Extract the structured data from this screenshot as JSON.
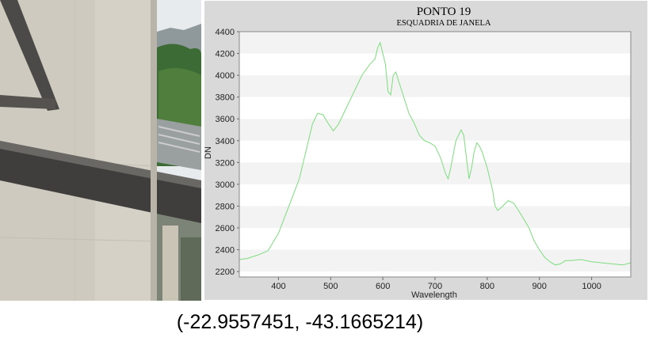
{
  "photo": {
    "description_icon": "building-window-photo"
  },
  "caption": {
    "coordinates": "(-22.9557451, -43.1665214)"
  },
  "chart_data": {
    "type": "line",
    "title": "PONTO 19",
    "subtitle": "ESQUADRIA DE JANELA",
    "xlabel": "Wavelength",
    "ylabel": "DN",
    "xlim": [
      325,
      1075
    ],
    "ylim": [
      2150,
      4400
    ],
    "xticks": [
      400,
      500,
      600,
      700,
      800,
      900,
      1000
    ],
    "yticks": [
      2200,
      2400,
      2600,
      2800,
      3000,
      3200,
      3400,
      3600,
      3800,
      4000,
      4200,
      4400
    ],
    "line_color": "#7ddc7d",
    "grid": "horizontal bands",
    "series": [
      {
        "x": [
          325,
          340,
          360,
          380,
          400,
          420,
          440,
          455,
          465,
          475,
          485,
          495,
          505,
          515,
          530,
          545,
          560,
          575,
          585,
          590,
          595,
          600,
          605,
          610,
          615,
          620,
          625,
          630,
          640,
          650,
          660,
          670,
          680,
          690,
          700,
          710,
          720,
          725,
          730,
          740,
          750,
          755,
          760,
          765,
          770,
          775,
          780,
          785,
          790,
          800,
          810,
          815,
          820,
          830,
          840,
          850,
          860,
          870,
          880,
          890,
          900,
          910,
          920,
          930,
          940,
          950,
          960,
          980,
          1000,
          1020,
          1040,
          1060,
          1075
        ],
        "values": [
          2310,
          2320,
          2350,
          2390,
          2550,
          2800,
          3050,
          3350,
          3550,
          3650,
          3640,
          3560,
          3490,
          3550,
          3700,
          3850,
          4000,
          4100,
          4150,
          4250,
          4300,
          4200,
          4100,
          3850,
          3820,
          4000,
          4030,
          3950,
          3800,
          3650,
          3560,
          3450,
          3400,
          3380,
          3350,
          3250,
          3100,
          3050,
          3150,
          3400,
          3500,
          3450,
          3250,
          3050,
          3150,
          3300,
          3380,
          3350,
          3300,
          3150,
          2950,
          2800,
          2760,
          2800,
          2850,
          2830,
          2760,
          2680,
          2600,
          2480,
          2400,
          2330,
          2290,
          2260,
          2270,
          2300,
          2300,
          2310,
          2290,
          2280,
          2270,
          2260,
          2280
        ]
      }
    ]
  }
}
